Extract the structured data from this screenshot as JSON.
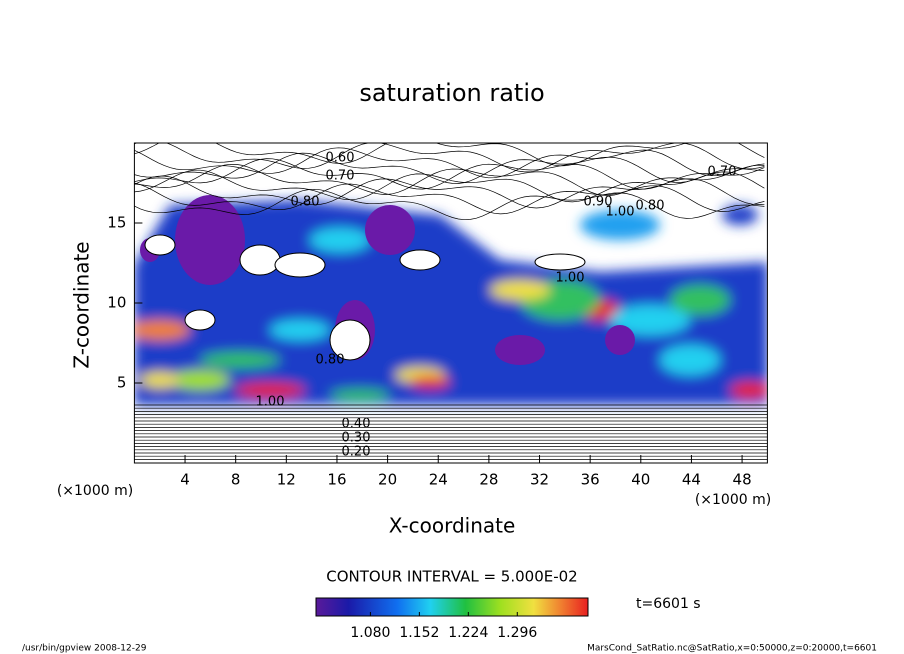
{
  "chart_data": {
    "type": "contour",
    "title": "saturation ratio",
    "x_label": "X-coordinate",
    "y_label": "Z-coordinate",
    "x_unit_left": "(×1000 m)",
    "x_unit_right": "(×1000 m)",
    "xlim": [
      0,
      50
    ],
    "xticks": [
      4,
      8,
      12,
      16,
      20,
      24,
      28,
      32,
      36,
      40,
      44,
      48
    ],
    "ylim": [
      0,
      20
    ],
    "yticks": [
      5,
      10,
      15
    ],
    "contour_labels": [
      "0.60",
      "0.70",
      "0.70",
      "0.80",
      "0.80",
      "0.90",
      "1.00",
      "1.00",
      "0.80",
      "1.00",
      "0.20",
      "0.30",
      "0.40"
    ],
    "contour_interval": "CONTOUR INTERVAL = 5.000E-02",
    "colorbar": {
      "clim": [
        1.0,
        1.4
      ],
      "ticks": [
        {
          "value": 1.08,
          "label": "1.080"
        },
        {
          "value": 1.152,
          "label": "1.152"
        },
        {
          "value": 1.224,
          "label": "1.224"
        },
        {
          "value": 1.296,
          "label": "1.296"
        }
      ]
    },
    "time_label": "t=6601 s",
    "footer_left": "/usr/bin/gpview   2008-12-29",
    "footer_right": "MarsCond_SatRatio.nc@SatRatio,x=0:50000,z=0:20000,t=6601"
  }
}
